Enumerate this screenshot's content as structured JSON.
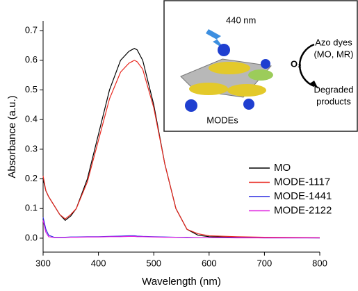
{
  "chart_data": {
    "type": "line",
    "x_label": "Wavelength (nm)",
    "y_label": "Absorbance (a.u.)",
    "x": [
      300,
      305,
      310,
      320,
      330,
      340,
      350,
      360,
      380,
      400,
      420,
      440,
      455,
      460,
      465,
      470,
      480,
      500,
      520,
      540,
      560,
      580,
      600,
      650,
      700,
      800
    ],
    "series": [
      {
        "name": "MO",
        "color": "#000000",
        "values": [
          0.2,
          0.16,
          0.14,
          0.11,
          0.08,
          0.06,
          0.075,
          0.1,
          0.2,
          0.35,
          0.5,
          0.6,
          0.63,
          0.635,
          0.64,
          0.635,
          0.6,
          0.45,
          0.25,
          0.1,
          0.03,
          0.01,
          0.005,
          0.003,
          0.002,
          0.001
        ]
      },
      {
        "name": "MODE-1117",
        "color": "#e8271e",
        "values": [
          0.21,
          0.16,
          0.14,
          0.11,
          0.08,
          0.065,
          0.08,
          0.1,
          0.19,
          0.33,
          0.47,
          0.56,
          0.59,
          0.595,
          0.6,
          0.595,
          0.57,
          0.44,
          0.25,
          0.1,
          0.03,
          0.015,
          0.008,
          0.005,
          0.003,
          0.002
        ]
      },
      {
        "name": "MODE-1441",
        "color": "#2a2ae0",
        "values": [
          0.07,
          0.03,
          0.01,
          0.003,
          0.003,
          0.003,
          0.004,
          0.004,
          0.005,
          0.005,
          0.006,
          0.007,
          0.008,
          0.008,
          0.008,
          0.007,
          0.006,
          0.005,
          0.004,
          0.003,
          0.003,
          0.002,
          0.002,
          0.002,
          0.001,
          0.001
        ]
      },
      {
        "name": "MODE-2122",
        "color": "#e020e0",
        "values": [
          0.06,
          0.02,
          0.005,
          0.002,
          0.002,
          0.002,
          0.003,
          0.003,
          0.004,
          0.004,
          0.005,
          0.005,
          0.006,
          0.006,
          0.006,
          0.005,
          0.005,
          0.004,
          0.003,
          0.003,
          0.002,
          0.002,
          0.002,
          0.001,
          0.001,
          0.001
        ]
      }
    ],
    "xlim": [
      300,
      800
    ],
    "xticks": [
      300,
      400,
      500,
      600,
      700,
      800
    ],
    "ylim": [
      -0.047,
      0.733
    ],
    "yticks": [
      {
        "value": 0,
        "label": "0.0"
      },
      0.1,
      0.2,
      0.3,
      0.4,
      0.5,
      0.6,
      0.7
    ],
    "legend": "right"
  },
  "inset": {
    "light": "440 nm",
    "oxidant": "O₂",
    "reactant": [
      "Azo dyes",
      "(MO, MR)"
    ],
    "product": [
      "Degraded",
      "products"
    ],
    "catalyst": "MODEs"
  }
}
